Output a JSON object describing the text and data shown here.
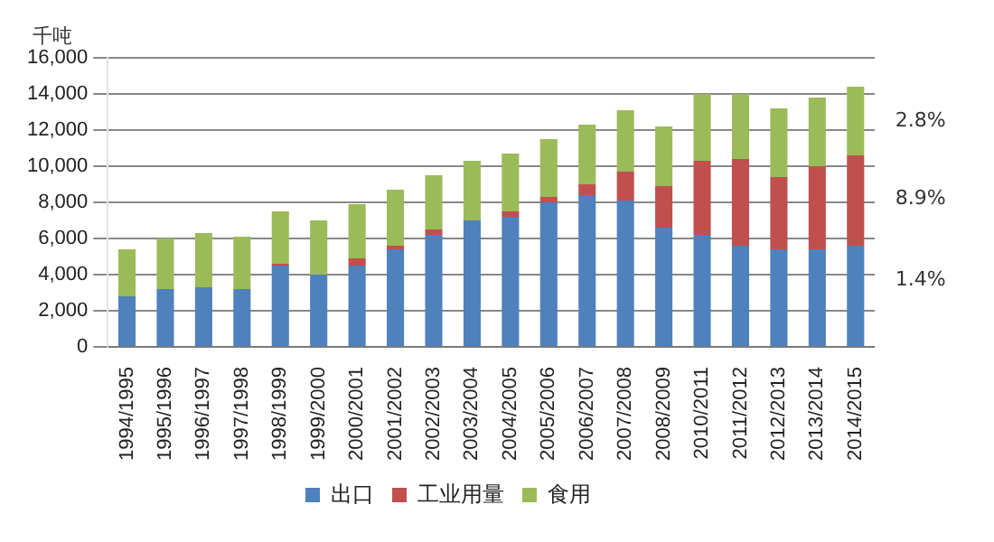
{
  "chart_data": {
    "type": "bar",
    "stacked": true,
    "ylabel": "千吨",
    "categories": [
      "1994/1995",
      "1995/1996",
      "1996/1997",
      "1997/1998",
      "1998/1999",
      "1999/2000",
      "2000/2001",
      "2001/2002",
      "2002/2003",
      "2003/2004",
      "2004/2005",
      "2005/2006",
      "2006/2007",
      "2007/2008",
      "2008/2009",
      "2010/2011",
      "2011/2012",
      "2012/2013",
      "2013/2014",
      "2014/2015"
    ],
    "series": [
      {
        "name": "出口",
        "color": "#4f81bd",
        "values": [
          2800,
          3200,
          3300,
          3200,
          4500,
          4000,
          4500,
          5400,
          6200,
          7000,
          7200,
          8000,
          8400,
          8100,
          6600,
          6200,
          5600,
          5400,
          5400,
          5600
        ]
      },
      {
        "name": "工业用量",
        "color": "#c0504d",
        "values": [
          0,
          0,
          0,
          0,
          100,
          0,
          400,
          200,
          300,
          0,
          300,
          300,
          600,
          1600,
          2300,
          4100,
          4800,
          4000,
          4600,
          5000
        ]
      },
      {
        "name": "食用",
        "color": "#9bbb59",
        "values": [
          2600,
          2800,
          3000,
          2900,
          2900,
          3000,
          3000,
          3100,
          3000,
          3300,
          3200,
          3200,
          3300,
          3400,
          3300,
          3700,
          3600,
          3800,
          3800,
          3800
        ]
      }
    ],
    "ylim": [
      0,
      16000
    ],
    "yticks": [
      0,
      {
        "value": 2000,
        "label": "2,000"
      },
      {
        "value": 4000,
        "label": "4,000"
      },
      {
        "value": 6000,
        "label": "6,000"
      },
      {
        "value": 8000,
        "label": "8,000"
      },
      {
        "value": 10000,
        "label": "10,000"
      },
      {
        "value": 12000,
        "label": "12,000"
      },
      {
        "value": 14000,
        "label": "14,000"
      },
      {
        "value": 16000,
        "label": "16,000"
      }
    ],
    "grid": "y",
    "legend": "bottom",
    "annotations": [
      {
        "text": "2.8%",
        "x": "2014/2015",
        "y": 12500
      },
      {
        "text": "8.9%",
        "x": "2014/2015",
        "y": 8200
      },
      {
        "text": "1.4%",
        "x": "2014/2015",
        "y": 3700
      }
    ]
  }
}
